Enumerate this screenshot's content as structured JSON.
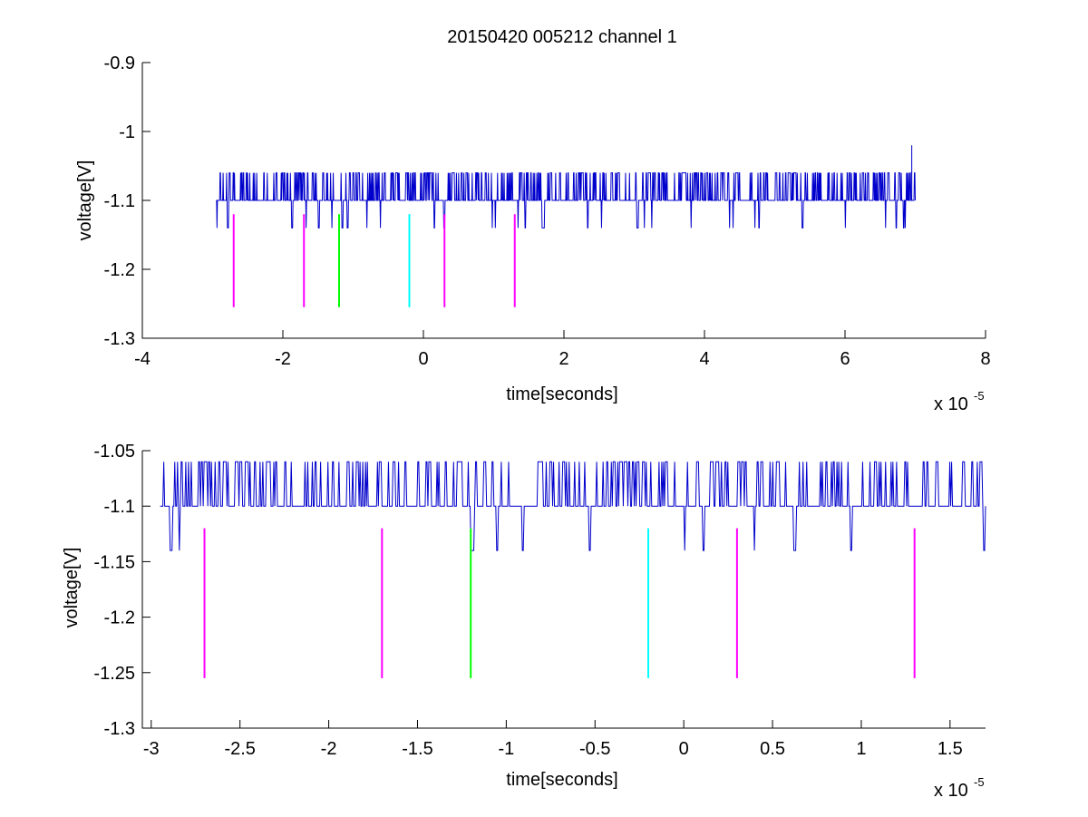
{
  "chart_data": [
    {
      "type": "line",
      "title": "20150420 005212 channel 1",
      "xlabel": "time[seconds]",
      "ylabel": "voltage[V]",
      "x_multiplier": "x 10",
      "x_multiplier_exp": "-5",
      "xlim": [
        -4,
        8
      ],
      "ylim": [
        -1.3,
        -0.9
      ],
      "xticks": [
        "-4",
        "-2",
        "0",
        "2",
        "4",
        "6",
        "8"
      ],
      "yticks": [
        "-0.9",
        "-1",
        "-1.1",
        "-1.2",
        "-1.3"
      ],
      "grid": false,
      "signal": {
        "color": "#0000cc",
        "x_range": [
          -2.95,
          7.0
        ],
        "baseline": -1.1,
        "upper_level": -1.06,
        "lower_level": -1.14,
        "spike": {
          "x": 6.95,
          "y": -1.02
        }
      },
      "markers": [
        {
          "x": -2.7,
          "y_top": -1.12,
          "y_bottom": -1.255,
          "color": "#ff00ff"
        },
        {
          "x": -1.7,
          "y_top": -1.12,
          "y_bottom": -1.255,
          "color": "#ff00ff"
        },
        {
          "x": -1.2,
          "y_top": -1.12,
          "y_bottom": -1.255,
          "color": "#00ff00"
        },
        {
          "x": -0.2,
          "y_top": -1.12,
          "y_bottom": -1.255,
          "color": "#00ffff"
        },
        {
          "x": 0.3,
          "y_top": -1.12,
          "y_bottom": -1.255,
          "color": "#ff00ff"
        },
        {
          "x": 1.3,
          "y_top": -1.12,
          "y_bottom": -1.255,
          "color": "#ff00ff"
        }
      ]
    },
    {
      "type": "line",
      "title": "",
      "xlabel": "time[seconds]",
      "ylabel": "voltage[V]",
      "x_multiplier": "x 10",
      "x_multiplier_exp": "-5",
      "xlim": [
        -3.05,
        1.7
      ],
      "ylim": [
        -1.3,
        -1.05
      ],
      "xticks": [
        "-3",
        "-2.5",
        "-2",
        "-1.5",
        "-1",
        "-0.5",
        "0",
        "0.5",
        "1",
        "1.5"
      ],
      "xtick_values": [
        -3,
        -2.5,
        -2,
        -1.5,
        -1,
        -0.5,
        0,
        0.5,
        1,
        1.5
      ],
      "yticks": [
        "-1.05",
        "-1.1",
        "-1.15",
        "-1.2",
        "-1.25",
        "-1.3"
      ],
      "ytick_values": [
        -1.05,
        -1.1,
        -1.15,
        -1.2,
        -1.25,
        -1.3
      ],
      "grid": false,
      "signal": {
        "color": "#0000cc",
        "x_range": [
          -2.95,
          1.7
        ],
        "baseline": -1.1,
        "upper_level": -1.06,
        "lower_level": -1.14
      },
      "markers": [
        {
          "x": -2.7,
          "y_top": -1.12,
          "y_bottom": -1.255,
          "color": "#ff00ff"
        },
        {
          "x": -1.7,
          "y_top": -1.12,
          "y_bottom": -1.255,
          "color": "#ff00ff"
        },
        {
          "x": -1.2,
          "y_top": -1.12,
          "y_bottom": -1.255,
          "color": "#00ff00"
        },
        {
          "x": -0.2,
          "y_top": -1.12,
          "y_bottom": -1.255,
          "color": "#00ffff"
        },
        {
          "x": 0.3,
          "y_top": -1.12,
          "y_bottom": -1.255,
          "color": "#ff00ff"
        },
        {
          "x": 1.3,
          "y_top": -1.12,
          "y_bottom": -1.255,
          "color": "#ff00ff"
        }
      ]
    }
  ]
}
